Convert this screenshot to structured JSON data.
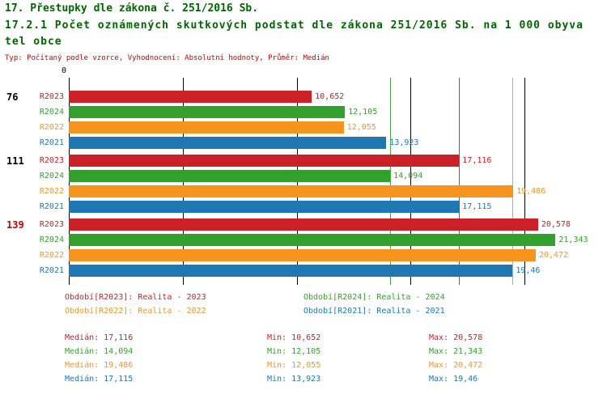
{
  "header": {
    "title1": "17. Přestupky dle zákona č. 251/2016 Sb.",
    "title2_line1": "17.2.1 Počet oznámených skutkových podstat dle zákona 251/2016 Sb. na 1 000 obyva",
    "title2_line2": "tel obce",
    "meta": "Typ: Počítaný podle vzorce, Vyhodnocení: Absolutní hodnoty, Průměr: Medián"
  },
  "colors": {
    "R2023": "#cb2026",
    "R2024": "#33a02c",
    "R2022": "#f7941e",
    "R2021": "#1f77b4",
    "title": "#006600",
    "meta": "#cc0000"
  },
  "chart_data": {
    "type": "bar",
    "orientation": "horizontal",
    "title": "17.2.1 Počet oznámených skutkových podstat dle zákona 251/2016 Sb. na 1 000 obyvatel obce",
    "axis": {
      "min": 0,
      "max": 23.6,
      "origin_label": "0",
      "gridlines": [
        5,
        10,
        15,
        20
      ]
    },
    "series_order": [
      "R2023",
      "R2024",
      "R2022",
      "R2021"
    ],
    "groups": [
      {
        "label": "76",
        "label_color": "#000000",
        "bars": [
          {
            "series": "R2023",
            "value": 10.652,
            "display": "10,652"
          },
          {
            "series": "R2024",
            "value": 12.105,
            "display": "12,105"
          },
          {
            "series": "R2022",
            "value": 12.055,
            "display": "12,055"
          },
          {
            "series": "R2021",
            "value": 13.923,
            "display": "13,923"
          }
        ]
      },
      {
        "label": "111",
        "label_color": "#000000",
        "bars": [
          {
            "series": "R2023",
            "value": 17.116,
            "display": "17,116"
          },
          {
            "series": "R2024",
            "value": 14.094,
            "display": "14,094"
          },
          {
            "series": "R2022",
            "value": 19.486,
            "display": "19,486"
          },
          {
            "series": "R2021",
            "value": 17.115,
            "display": "17,115"
          }
        ]
      },
      {
        "label": "139",
        "label_color": "#cc0000",
        "bars": [
          {
            "series": "R2023",
            "value": 20.578,
            "display": "20,578"
          },
          {
            "series": "R2024",
            "value": 21.343,
            "display": "21,343"
          },
          {
            "series": "R2022",
            "value": 20.472,
            "display": "20,472"
          },
          {
            "series": "R2021",
            "value": 19.46,
            "display": "19,46"
          }
        ]
      }
    ],
    "median_lines": [
      {
        "series": "R2023",
        "value": 17.116
      },
      {
        "series": "R2024",
        "value": 14.094
      },
      {
        "series": "R2022",
        "value": 19.486
      },
      {
        "series": "R2021",
        "value": 17.115
      }
    ]
  },
  "legend": [
    {
      "series": "R2023",
      "text": "Období[R2023]: Realita - 2023"
    },
    {
      "series": "R2024",
      "text": "Období[R2024]: Realita - 2024"
    },
    {
      "series": "R2022",
      "text": "Období[R2022]: Realita - 2022"
    },
    {
      "series": "R2021",
      "text": "Období[R2021]: Realita - 2021"
    }
  ],
  "stats": [
    {
      "series": "R2023",
      "median": "Medián: 17,116",
      "min": "Min: 10,652",
      "max": "Max: 20,578"
    },
    {
      "series": "R2024",
      "median": "Medián: 14,094",
      "min": "Min: 12,105",
      "max": "Max: 21,343"
    },
    {
      "series": "R2022",
      "median": "Medián: 19,486",
      "min": "Min: 12,055",
      "max": "Max: 20,472"
    },
    {
      "series": "R2021",
      "median": "Medián: 17,115",
      "min": "Min: 13,923",
      "max": "Max: 19,46"
    }
  ]
}
